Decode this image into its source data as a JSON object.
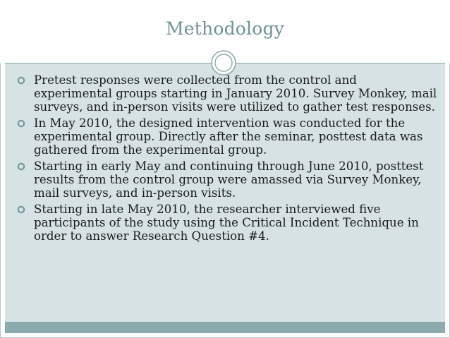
{
  "slide": {
    "title": "Methodology",
    "bullets": [
      "Pretest responses were collected from the control and experimental groups starting in January 2010. Survey Monkey, mail surveys, and in-person visits were utilized to gather test responses.",
      "In May 2010, the designed intervention was conducted for the experimental group. Directly after the seminar, posttest data was gathered from the experimental group.",
      "Starting in early May and continuing through June 2010, posttest results from the control group were amassed via Survey Monkey, mail surveys, and in-person visits.",
      "Starting in late May 2010, the researcher interviewed five participants of the study using the Critical Incident Technique in order to answer Research Question #4."
    ]
  },
  "theme": {
    "title_color": "#6f9297",
    "content_background": "#d6e2e4",
    "footer_color": "#8cabae",
    "bullet_icon": "ring-bullet-icon",
    "ornament_icon": "double-ring-ornament-icon"
  }
}
